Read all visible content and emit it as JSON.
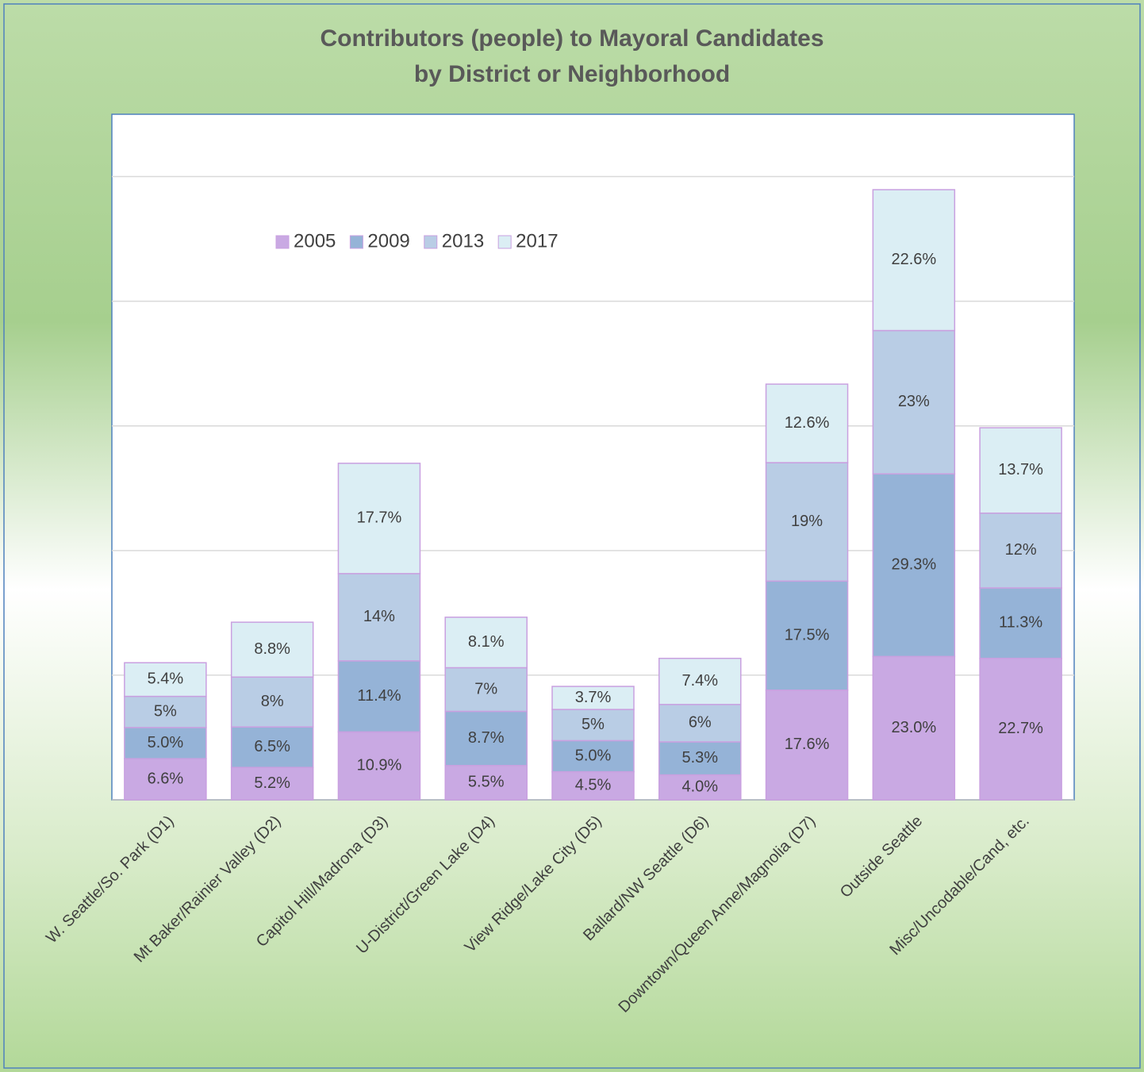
{
  "chart_data": {
    "type": "stacked_bar",
    "title": [
      "Contributors (people) to Mayoral Candidates",
      "by District or Neighborhood"
    ],
    "categories": [
      "W. Seattle/So. Park (D1)",
      "Mt Baker/Rainier Valley (D2)",
      "Capitol Hill/Madrona (D3)",
      "U-District/Green Lake (D4)",
      "View Ridge/Lake City (D5)",
      "Ballard/NW Seattle (D6)",
      "Downtown/Queen Anne/Magnolia (D7)",
      "Outside Seattle",
      "Misc/Uncodable/Cand, etc."
    ],
    "series": [
      {
        "name": "2005",
        "color": "#c9a9e3",
        "values": [
          6.6,
          5.2,
          10.9,
          5.5,
          4.5,
          4.0,
          17.6,
          23.0,
          22.7
        ],
        "value_labels": [
          "6.6%",
          "5.2%",
          "10.9%",
          "5.5%",
          "4.5%",
          "4.0%",
          "17.6%",
          "23.0%",
          "22.7%"
        ]
      },
      {
        "name": "2009",
        "color": "#95b3d7",
        "values": [
          5.0,
          6.5,
          11.4,
          8.7,
          5.0,
          5.3,
          17.5,
          29.3,
          11.3
        ],
        "value_labels": [
          "5.0%",
          "6.5%",
          "11.4%",
          "8.7%",
          "5.0%",
          "5.3%",
          "17.5%",
          "29.3%",
          "11.3%"
        ]
      },
      {
        "name": "2013",
        "color": "#b9cde5",
        "values": [
          5,
          8,
          14,
          7,
          5,
          6,
          19,
          23,
          12
        ],
        "value_labels": [
          "5%",
          "8%",
          "14%",
          "7%",
          "5%",
          "6%",
          "19%",
          "23%",
          "12%"
        ]
      },
      {
        "name": "2017",
        "color": "#dbeef4",
        "values": [
          5.4,
          8.8,
          17.7,
          8.1,
          3.7,
          7.4,
          12.6,
          22.6,
          13.7
        ],
        "value_labels": [
          "5.4%",
          "8.8%",
          "17.7%",
          "8.1%",
          "3.7%",
          "7.4%",
          "12.6%",
          "22.6%",
          "13.7%"
        ]
      }
    ],
    "ylim": [
      0,
      110
    ],
    "yticks": [
      0,
      20,
      40,
      60,
      80,
      100
    ],
    "grid": true,
    "legend": "top-left"
  }
}
